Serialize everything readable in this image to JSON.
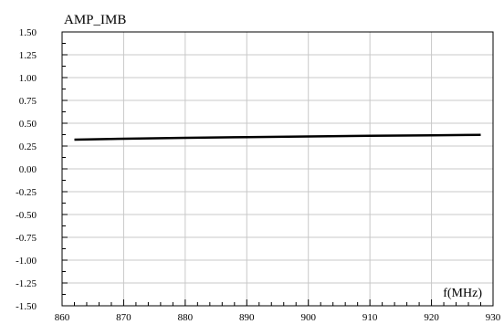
{
  "chart_data": {
    "type": "line",
    "title": "AMP_IMB",
    "xlabel": "f(MHz)",
    "ylabel": "",
    "xlim": [
      860,
      930
    ],
    "ylim": [
      -1.5,
      1.5
    ],
    "grid": true,
    "x_ticks": [
      "860",
      "870",
      "880",
      "890",
      "900",
      "910",
      "920",
      "930"
    ],
    "y_ticks": [
      "1.50",
      "1.25",
      "1.00",
      "0.75",
      "0.50",
      "0.25",
      "0.00",
      "-0.25",
      "-0.50",
      "-0.75",
      "-1.00",
      "-1.25",
      "-1.50"
    ],
    "series": [
      {
        "color": "#000000",
        "x": [
          862,
          870,
          880,
          890,
          900,
          910,
          920,
          928
        ],
        "y": [
          0.32,
          0.33,
          0.34,
          0.348,
          0.355,
          0.362,
          0.368,
          0.373
        ]
      }
    ]
  }
}
